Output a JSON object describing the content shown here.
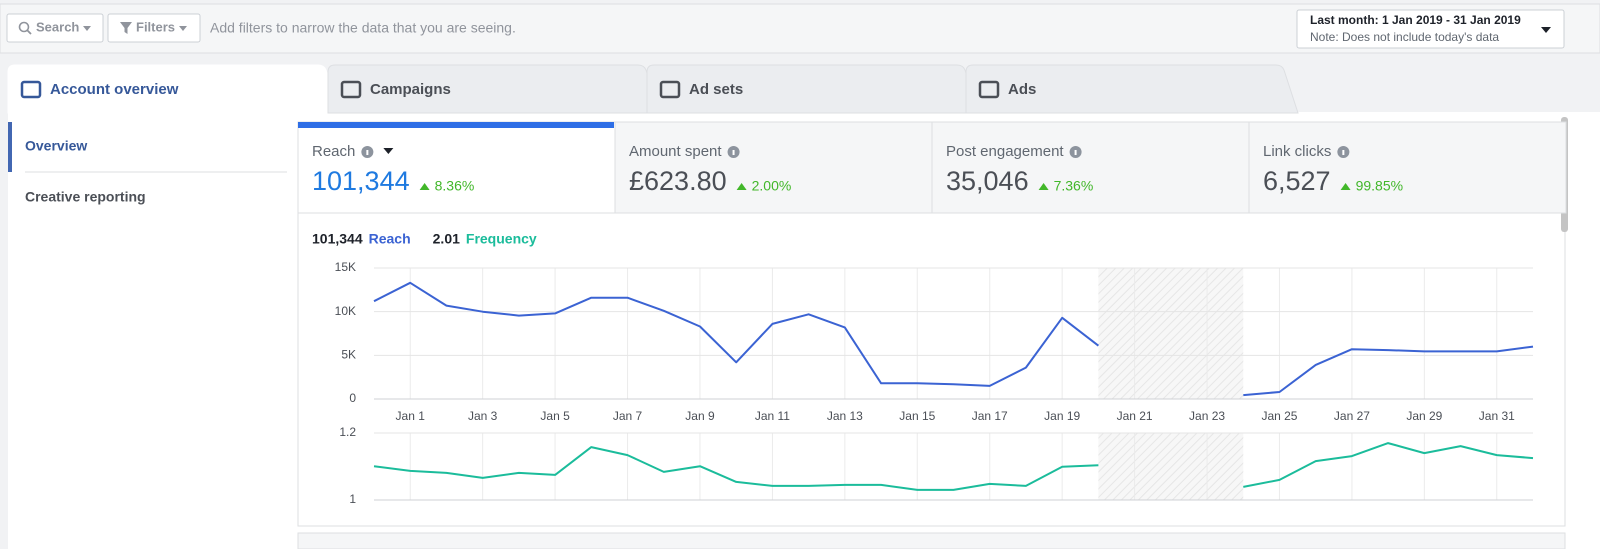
{
  "toolbar": {
    "search": "Search",
    "filters": "Filters",
    "hint": "Add filters to narrow the data that you are seeing.",
    "date_range": "Last month: 1 Jan 2019 - 31 Jan 2019",
    "date_note": "Note: Does not include today's data"
  },
  "tabs": [
    "Account overview",
    "Campaigns",
    "Ad sets",
    "Ads"
  ],
  "sidebar": [
    "Overview",
    "Creative reporting"
  ],
  "metrics": [
    {
      "label": "Reach",
      "value": "101,344",
      "change": "8.36%"
    },
    {
      "label": "Amount spent",
      "value": "£623.80",
      "change": "2.00%"
    },
    {
      "label": "Post engagement",
      "value": "35,046",
      "change": "7.36%"
    },
    {
      "label": "Link clicks",
      "value": "6,527",
      "change": "99.85%"
    }
  ],
  "chart_data": [
    {
      "type": "line",
      "categories": [
        null,
        "Jan 1",
        null,
        "Jan 3",
        null,
        "Jan 5",
        null,
        "Jan 7",
        null,
        "Jan 9",
        null,
        "Jan 11",
        null,
        "Jan 13",
        null,
        "Jan 15",
        null,
        "Jan 17",
        null,
        "Jan 19",
        null,
        "Jan 21",
        null,
        "Jan 23",
        null,
        "Jan 25",
        null,
        "Jan 27",
        null,
        "Jan 29",
        null,
        "Jan 31",
        null
      ],
      "series": [
        {
          "name": "Reach",
          "color": "#3b63d3",
          "values": [
            11200,
            13300,
            10700,
            10000,
            9550,
            9800,
            11600,
            11600,
            10100,
            8300,
            4200,
            8600,
            9700,
            8200,
            1800,
            1800,
            1700,
            1500,
            3600,
            9300,
            6100,
            null,
            null,
            null,
            450,
            800,
            3900,
            5700,
            5600,
            5450,
            5450,
            5450,
            6000
          ]
        }
      ],
      "ylim": [
        0,
        15000
      ],
      "yticks": [
        0,
        {
          "value": 5000,
          "label": "5K"
        },
        {
          "value": 10000,
          "label": "10K"
        },
        {
          "value": 15000,
          "label": "15K"
        }
      ],
      "grid": true
    },
    {
      "type": "line",
      "summary": "2.01",
      "series": [
        {
          "name": "Frequency",
          "color": "#1bbc9b",
          "values": [
            1.101,
            1.087,
            1.081,
            1.066,
            1.081,
            1.075,
            1.158,
            1.134,
            1.084,
            1.101,
            1.054,
            1.042,
            1.042,
            1.045,
            1.045,
            1.03,
            1.03,
            1.048,
            1.042,
            1.099,
            1.104,
            null,
            null,
            null,
            1.039,
            1.06,
            1.116,
            1.131,
            1.17,
            1.14,
            1.161,
            1.134,
            1.125
          ]
        }
      ],
      "ylim": [
        1,
        1.2
      ],
      "yticks": [
        1,
        1.2
      ],
      "grid": true
    }
  ]
}
